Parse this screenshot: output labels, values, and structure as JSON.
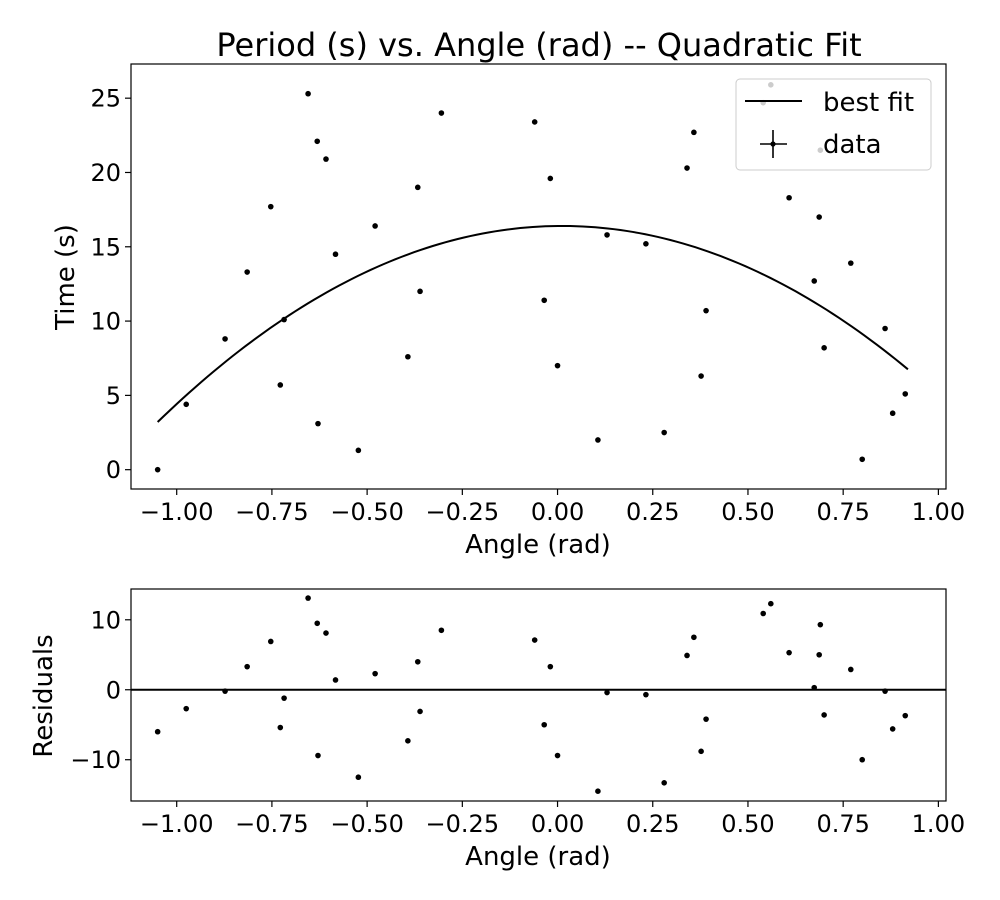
{
  "chart_data": [
    {
      "type": "scatter",
      "title": "Period (s) vs. Angle (rad) -- Quadratic Fit",
      "xlabel": "Angle (rad)",
      "ylabel": "Time (s)",
      "xlim": [
        -1.12,
        1.02
      ],
      "ylim": [
        -1.3,
        27.3
      ],
      "xticks": [
        -1.0,
        -0.75,
        -0.5,
        -0.25,
        0.0,
        0.25,
        0.5,
        0.75,
        1.0
      ],
      "xtick_labels": [
        "−1.00",
        "−0.75",
        "−0.50",
        "−0.25",
        "0.00",
        "0.25",
        "0.50",
        "0.75",
        "1.00"
      ],
      "yticks": [
        0,
        5,
        10,
        15,
        20,
        25
      ],
      "ytick_labels": [
        "0",
        "5",
        "10",
        "15",
        "20",
        "25"
      ],
      "grid": false,
      "legend": {
        "placement": "top-right",
        "entries": [
          "best fit",
          "data"
        ]
      },
      "fit": {
        "name": "best fit",
        "type": "quadratic",
        "a": -11.7,
        "b": 0.28,
        "c": 16.4,
        "x_range": [
          -1.05,
          0.92
        ]
      },
      "series": [
        {
          "name": "data",
          "points": [
            [
              -1.05,
              0.0
            ],
            [
              -0.975,
              4.4
            ],
            [
              -0.873,
              8.8
            ],
            [
              -0.815,
              13.3
            ],
            [
              -0.753,
              17.7
            ],
            [
              -0.728,
              5.7
            ],
            [
              -0.718,
              10.1
            ],
            [
              -0.655,
              25.3
            ],
            [
              -0.631,
              22.1
            ],
            [
              -0.629,
              3.1
            ],
            [
              -0.608,
              20.9
            ],
            [
              -0.583,
              14.5
            ],
            [
              -0.523,
              1.3
            ],
            [
              -0.479,
              16.4
            ],
            [
              -0.393,
              7.6
            ],
            [
              -0.367,
              19.0
            ],
            [
              -0.361,
              12.0
            ],
            [
              -0.305,
              24.0
            ],
            [
              -0.06,
              23.4
            ],
            [
              -0.035,
              11.4
            ],
            [
              -0.019,
              19.6
            ],
            [
              0.0,
              7.0
            ],
            [
              0.106,
              2.0
            ],
            [
              0.13,
              15.8
            ],
            [
              0.232,
              15.2
            ],
            [
              0.28,
              2.5
            ],
            [
              0.34,
              20.3
            ],
            [
              0.358,
              22.7
            ],
            [
              0.377,
              6.3
            ],
            [
              0.39,
              10.7
            ],
            [
              0.54,
              24.7
            ],
            [
              0.56,
              25.9
            ],
            [
              0.608,
              18.3
            ],
            [
              0.674,
              12.7
            ],
            [
              0.687,
              17.0
            ],
            [
              0.69,
              21.5
            ],
            [
              0.7,
              8.2
            ],
            [
              0.77,
              13.9
            ],
            [
              0.8,
              0.7
            ],
            [
              0.86,
              9.5
            ],
            [
              0.88,
              3.8
            ],
            [
              0.913,
              5.1
            ]
          ]
        }
      ]
    },
    {
      "type": "scatter",
      "title": "",
      "xlabel": "Angle (rad)",
      "ylabel": "Residuals",
      "xlim": [
        -1.12,
        1.02
      ],
      "ylim": [
        -15.9,
        14.4
      ],
      "xticks": [
        -1.0,
        -0.75,
        -0.5,
        -0.25,
        0.0,
        0.25,
        0.5,
        0.75,
        1.0
      ],
      "xtick_labels": [
        "−1.00",
        "−0.75",
        "−0.50",
        "−0.25",
        "0.00",
        "0.25",
        "0.50",
        "0.75",
        "1.00"
      ],
      "yticks": [
        -10,
        0,
        10
      ],
      "ytick_labels": [
        "−10",
        "0",
        "10"
      ],
      "grid": false,
      "reference_line": 0,
      "series": [
        {
          "name": "",
          "points": [
            [
              -1.05,
              -6.0
            ],
            [
              -0.975,
              -2.7
            ],
            [
              -0.873,
              -0.2
            ],
            [
              -0.815,
              3.3
            ],
            [
              -0.753,
              6.9
            ],
            [
              -0.728,
              -5.4
            ],
            [
              -0.718,
              -1.2
            ],
            [
              -0.655,
              13.1
            ],
            [
              -0.631,
              9.5
            ],
            [
              -0.629,
              -9.4
            ],
            [
              -0.608,
              8.1
            ],
            [
              -0.583,
              1.4
            ],
            [
              -0.523,
              -12.5
            ],
            [
              -0.479,
              2.3
            ],
            [
              -0.393,
              -7.3
            ],
            [
              -0.367,
              4.0
            ],
            [
              -0.361,
              -3.1
            ],
            [
              -0.305,
              8.5
            ],
            [
              -0.06,
              7.1
            ],
            [
              -0.035,
              -5.0
            ],
            [
              -0.019,
              3.3
            ],
            [
              0.0,
              -9.4
            ],
            [
              0.106,
              -14.5
            ],
            [
              0.13,
              -0.4
            ],
            [
              0.232,
              -0.7
            ],
            [
              0.28,
              -13.3
            ],
            [
              0.34,
              4.9
            ],
            [
              0.358,
              7.5
            ],
            [
              0.377,
              -8.8
            ],
            [
              0.39,
              -4.2
            ],
            [
              0.54,
              10.9
            ],
            [
              0.56,
              12.3
            ],
            [
              0.608,
              5.3
            ],
            [
              0.674,
              0.3
            ],
            [
              0.687,
              5.0
            ],
            [
              0.69,
              9.3
            ],
            [
              0.7,
              -3.6
            ],
            [
              0.77,
              2.9
            ],
            [
              0.8,
              -10.0
            ],
            [
              0.86,
              -0.2
            ],
            [
              0.88,
              -5.6
            ],
            [
              0.913,
              -3.7
            ]
          ]
        }
      ]
    }
  ]
}
